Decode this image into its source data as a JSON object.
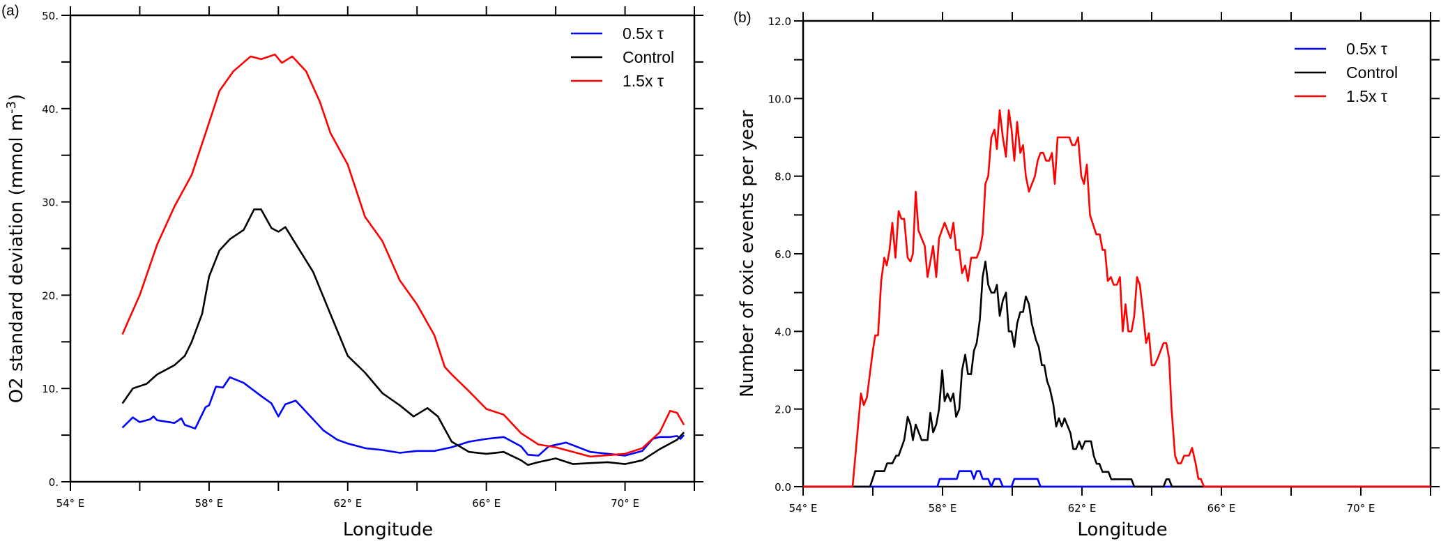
{
  "chart_data": [
    {
      "type": "line",
      "panel_label": "(a)",
      "xlabel": "Longitude",
      "ylabel": "O2 standard deviation (mmol m",
      "ylabel_sup": "-3",
      "ylabel_close": ")",
      "xlim": [
        54,
        72
      ],
      "ylim": [
        0,
        50
      ],
      "xticks": [
        54,
        58,
        62,
        66,
        70
      ],
      "xtick_labels": [
        "54° E",
        "58° E",
        "62° E",
        "66° E",
        "70° E"
      ],
      "xminor_step": 2,
      "yticks": [
        0,
        10,
        20,
        30,
        40,
        50
      ],
      "ytick_labels": [
        "0.",
        "10.",
        "20.",
        "30.",
        "40.",
        "50."
      ],
      "yminor_step": 5,
      "grid": false,
      "legend_position": "top-right",
      "series": [
        {
          "name": "0.5x τ",
          "color": "#0000ff",
          "x": [
            55.5,
            55.8,
            56.0,
            56.3,
            56.4,
            56.5,
            57.0,
            57.2,
            57.3,
            57.6,
            57.9,
            58.0,
            58.2,
            58.4,
            58.6,
            59.0,
            59.5,
            59.8,
            60.0,
            60.2,
            60.5,
            60.8,
            61.3,
            61.7,
            62.0,
            62.5,
            63.0,
            63.5,
            64.0,
            64.5,
            65.0,
            65.5,
            66.0,
            66.5,
            67.0,
            67.2,
            67.5,
            67.8,
            68.3,
            69.0,
            70.0,
            70.5,
            70.8,
            71.0,
            71.3,
            71.5,
            71.6,
            71.7
          ],
          "y": [
            5.8,
            6.9,
            6.4,
            6.7,
            7.0,
            6.6,
            6.3,
            6.8,
            6.1,
            5.7,
            8.0,
            8.2,
            10.2,
            10.1,
            11.2,
            10.6,
            9.2,
            8.4,
            7.0,
            8.3,
            8.7,
            7.5,
            5.5,
            4.5,
            4.1,
            3.6,
            3.4,
            3.1,
            3.3,
            3.3,
            3.7,
            4.3,
            4.6,
            4.8,
            3.8,
            2.9,
            2.8,
            3.8,
            4.2,
            3.2,
            2.8,
            3.3,
            4.6,
            4.8,
            4.8,
            4.9,
            4.6,
            5.0
          ]
        },
        {
          "name": "Control",
          "color": "#000000",
          "x": [
            55.5,
            55.8,
            56.2,
            56.5,
            57.0,
            57.3,
            57.5,
            57.8,
            58.0,
            58.3,
            58.6,
            59.0,
            59.3,
            59.5,
            59.8,
            60.0,
            60.2,
            60.5,
            61.0,
            61.5,
            62.0,
            62.5,
            63.0,
            63.5,
            63.9,
            64.3,
            64.6,
            65.0,
            65.5,
            66.0,
            66.5,
            67.0,
            67.2,
            67.5,
            68.0,
            68.5,
            69.0,
            69.5,
            70.0,
            70.5,
            71.0,
            71.5,
            71.7
          ],
          "y": [
            8.4,
            10.0,
            10.5,
            11.5,
            12.5,
            13.5,
            15.0,
            18.0,
            22.0,
            24.8,
            26.0,
            27.0,
            29.2,
            29.2,
            27.2,
            26.8,
            27.3,
            25.5,
            22.5,
            18.0,
            13.5,
            11.7,
            9.5,
            8.2,
            7.0,
            7.9,
            7.0,
            4.3,
            3.2,
            3.0,
            3.2,
            2.3,
            1.8,
            2.1,
            2.5,
            1.9,
            2.0,
            2.1,
            1.9,
            2.3,
            3.5,
            4.5,
            5.3
          ]
        },
        {
          "name": "1.5x τ",
          "color": "#ff0000",
          "x": [
            55.5,
            55.7,
            56.0,
            56.5,
            57.0,
            57.5,
            58.0,
            58.3,
            58.7,
            59.2,
            59.5,
            59.9,
            60.1,
            60.4,
            60.8,
            61.2,
            61.5,
            62.0,
            62.5,
            63.0,
            63.5,
            64.0,
            64.5,
            64.8,
            65.0,
            65.5,
            66.0,
            66.5,
            67.0,
            67.5,
            68.0,
            69.0,
            70.0,
            70.5,
            71.0,
            71.3,
            71.5,
            71.7
          ],
          "y": [
            15.8,
            17.5,
            20.0,
            25.4,
            29.5,
            32.9,
            38.5,
            41.9,
            44.0,
            45.6,
            45.3,
            45.8,
            44.9,
            45.6,
            44.0,
            40.7,
            37.4,
            34.0,
            28.4,
            25.8,
            21.6,
            19.0,
            15.7,
            12.3,
            11.5,
            9.7,
            7.8,
            7.2,
            5.2,
            4.0,
            3.7,
            2.7,
            3.0,
            3.6,
            5.3,
            7.6,
            7.4,
            6.1
          ]
        }
      ]
    },
    {
      "type": "line",
      "panel_label": "(b)",
      "xlabel": "Longitude",
      "ylabel": "Number of oxic events per year",
      "xlim": [
        54,
        72
      ],
      "ylim": [
        0,
        12
      ],
      "xticks": [
        54,
        58,
        62,
        66,
        70
      ],
      "xtick_labels": [
        "54° E",
        "58° E",
        "62° E",
        "66° E",
        "70° E"
      ],
      "xminor_step": 2,
      "yticks": [
        0,
        2,
        4,
        6,
        8,
        10,
        12
      ],
      "ytick_labels": [
        "0.0",
        "2.0",
        "4.0",
        "6.0",
        "8.0",
        "10.0",
        "12.0"
      ],
      "yminor_step": 1,
      "grid": false,
      "legend_position": "top-right",
      "series": [
        {
          "name": "0.5x τ",
          "color": "#0000ff",
          "x": [
            54.0,
            57.85,
            57.92,
            58.41,
            58.48,
            58.82,
            58.9,
            58.98,
            59.07,
            59.15,
            59.31,
            59.4,
            59.49,
            59.64,
            59.73,
            59.98,
            60.06,
            60.73,
            60.81,
            72.0
          ],
          "y": [
            0,
            0,
            0.2,
            0.2,
            0.4,
            0.4,
            0.2,
            0.4,
            0.4,
            0.2,
            0.2,
            0,
            0.2,
            0.2,
            0,
            0,
            0.2,
            0.2,
            0,
            0
          ]
        },
        {
          "name": "Control",
          "color": "#000000",
          "x": [
            54.0,
            55.92,
            56.07,
            56.33,
            56.41,
            56.56,
            56.67,
            56.74,
            56.9,
            57.0,
            57.08,
            57.15,
            57.23,
            57.4,
            57.57,
            57.65,
            57.73,
            57.82,
            57.9,
            57.99,
            58.06,
            58.14,
            58.23,
            58.31,
            58.39,
            58.48,
            58.56,
            58.65,
            58.73,
            58.82,
            58.9,
            58.98,
            59.07,
            59.15,
            59.23,
            59.31,
            59.4,
            59.49,
            59.56,
            59.64,
            59.73,
            59.82,
            59.9,
            59.98,
            60.06,
            60.14,
            60.23,
            60.31,
            60.39,
            60.48,
            60.56,
            60.68,
            60.76,
            60.85,
            60.92,
            61.0,
            61.08,
            61.18,
            61.26,
            61.34,
            61.42,
            61.5,
            61.67,
            61.75,
            61.83,
            61.92,
            62.0,
            62.09,
            62.26,
            62.34,
            62.42,
            62.5,
            62.59,
            62.76,
            62.84,
            63.42,
            63.5,
            64.34,
            64.42,
            64.5,
            64.58,
            72.0
          ],
          "y": [
            0,
            0,
            0.4,
            0.4,
            0.6,
            0.6,
            0.8,
            0.8,
            1.2,
            1.8,
            1.6,
            1.2,
            1.6,
            1.2,
            1.2,
            1.9,
            1.4,
            1.6,
            2.0,
            3.0,
            2.2,
            2.4,
            2.2,
            2.4,
            1.8,
            2.0,
            3.0,
            3.4,
            2.9,
            2.9,
            3.5,
            3.7,
            4.3,
            5.4,
            5.8,
            5.2,
            5.0,
            5.0,
            5.2,
            4.4,
            4.8,
            5.0,
            4.0,
            4.0,
            3.6,
            4.2,
            4.5,
            4.5,
            4.9,
            4.7,
            4.2,
            3.78,
            3.6,
            3.13,
            3.13,
            2.72,
            2.52,
            2.11,
            1.55,
            1.76,
            1.55,
            1.76,
            1.38,
            0.97,
            0.97,
            1.17,
            0.97,
            1.17,
            1.17,
            0.79,
            0.59,
            0.59,
            0.38,
            0.38,
            0.19,
            0.19,
            0,
            0,
            0.19,
            0.19,
            0,
            0
          ]
        },
        {
          "name": "1.5x τ",
          "color": "#ff0000",
          "x": [
            54.0,
            55.42,
            55.6,
            55.66,
            55.74,
            55.83,
            56.0,
            56.07,
            56.15,
            56.24,
            56.33,
            56.4,
            56.48,
            56.56,
            56.65,
            56.74,
            56.82,
            56.9,
            57.0,
            57.08,
            57.15,
            57.23,
            57.31,
            57.49,
            57.57,
            57.65,
            57.73,
            57.82,
            57.9,
            58.06,
            58.23,
            58.31,
            58.39,
            58.48,
            58.56,
            58.65,
            58.73,
            58.82,
            58.98,
            59.07,
            59.15,
            59.23,
            59.31,
            59.4,
            59.49,
            59.56,
            59.64,
            59.73,
            59.82,
            59.9,
            59.98,
            60.06,
            60.14,
            60.23,
            60.31,
            60.39,
            60.48,
            60.65,
            60.73,
            60.81,
            60.89,
            60.97,
            61.06,
            61.14,
            61.22,
            61.3,
            61.64,
            61.72,
            61.8,
            61.89,
            61.98,
            62.06,
            62.14,
            62.23,
            62.41,
            62.51,
            62.59,
            62.66,
            62.74,
            62.83,
            62.91,
            63.0,
            63.09,
            63.17,
            63.25,
            63.33,
            63.42,
            63.5,
            63.58,
            63.66,
            63.75,
            63.84,
            63.92,
            64.0,
            64.08,
            64.17,
            64.34,
            64.42,
            64.5,
            64.57,
            64.67,
            64.75,
            64.84,
            64.93,
            65.07,
            65.16,
            65.26,
            65.34,
            65.41,
            65.5,
            72.0
          ],
          "y": [
            0,
            0,
            1.8,
            2.4,
            2.1,
            2.3,
            3.5,
            3.9,
            3.9,
            5.3,
            5.9,
            5.7,
            6.1,
            6.8,
            5.9,
            7.1,
            6.9,
            6.9,
            5.9,
            5.8,
            6.0,
            7.6,
            6.6,
            6.2,
            5.4,
            5.8,
            6.2,
            5.4,
            6.4,
            6.8,
            6.4,
            6.8,
            6.1,
            6.1,
            5.5,
            5.7,
            5.3,
            5.9,
            5.9,
            6.1,
            6.5,
            7.8,
            8.0,
            9.0,
            9.2,
            8.7,
            9.7,
            9.0,
            8.5,
            9.7,
            9.2,
            8.4,
            9.4,
            8.6,
            8.8,
            8.0,
            7.6,
            8.0,
            8.4,
            8.6,
            8.6,
            8.4,
            8.4,
            8.6,
            7.8,
            9.0,
            9.0,
            8.8,
            8.8,
            9.0,
            8.0,
            7.8,
            8.3,
            7.0,
            6.5,
            6.5,
            6.1,
            6.1,
            5.3,
            5.4,
            5.2,
            5.2,
            5.4,
            4.0,
            4.7,
            4.0,
            4.0,
            4.4,
            5.4,
            5.2,
            4.5,
            3.7,
            3.95,
            3.13,
            3.13,
            3.3,
            3.7,
            3.7,
            3.3,
            2.0,
            0.8,
            0.6,
            0.6,
            0.8,
            0.8,
            1.0,
            0.6,
            0.2,
            0.2,
            0,
            0
          ]
        }
      ]
    }
  ]
}
